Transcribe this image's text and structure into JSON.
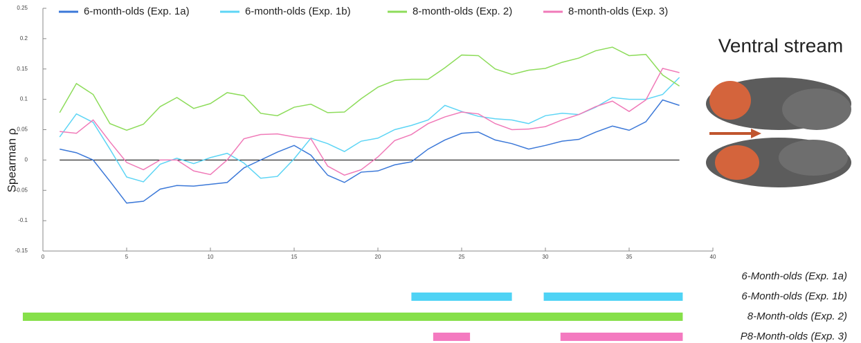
{
  "chart_data": {
    "type": "line",
    "title": "Ventral stream",
    "y_label": "Spearman ρ",
    "x": [
      1,
      2,
      3,
      4,
      5,
      6,
      7,
      8,
      9,
      10,
      11,
      12,
      13,
      14,
      15,
      16,
      17,
      18,
      19,
      20,
      21,
      22,
      23,
      24,
      25,
      26,
      27,
      28,
      29,
      30,
      31,
      32,
      33,
      34,
      35,
      36,
      37,
      38
    ],
    "series": [
      {
        "name": "6-month-olds (Exp. 1a)",
        "color": "#3b78d8",
        "values": [
          0.018,
          0.012,
          0.0,
          -0.035,
          -0.071,
          -0.068,
          -0.048,
          -0.042,
          -0.043,
          -0.04,
          -0.037,
          -0.013,
          0.0,
          0.013,
          0.024,
          0.008,
          -0.025,
          -0.037,
          -0.02,
          -0.018,
          -0.008,
          -0.003,
          0.018,
          0.033,
          0.044,
          0.046,
          0.033,
          0.027,
          0.018,
          0.024,
          0.031,
          0.034,
          0.046,
          0.056,
          0.049,
          0.063,
          0.099,
          0.09
        ]
      },
      {
        "name": "6-month-olds (Exp. 1b)",
        "color": "#5dd5f5",
        "values": [
          0.038,
          0.076,
          0.062,
          0.018,
          -0.028,
          -0.036,
          -0.007,
          0.003,
          -0.006,
          0.004,
          0.011,
          -0.005,
          -0.03,
          -0.027,
          0.002,
          0.036,
          0.027,
          0.014,
          0.031,
          0.036,
          0.05,
          0.057,
          0.066,
          0.09,
          0.08,
          0.072,
          0.068,
          0.066,
          0.06,
          0.073,
          0.077,
          0.075,
          0.087,
          0.103,
          0.1,
          0.1,
          0.108,
          0.136
        ]
      },
      {
        "name": "8-month-olds (Exp. 2)",
        "color": "#8ddc5a",
        "values": [
          0.078,
          0.126,
          0.108,
          0.06,
          0.049,
          0.059,
          0.088,
          0.103,
          0.085,
          0.093,
          0.111,
          0.106,
          0.077,
          0.073,
          0.087,
          0.092,
          0.078,
          0.079,
          0.101,
          0.12,
          0.131,
          0.133,
          0.133,
          0.152,
          0.173,
          0.172,
          0.15,
          0.141,
          0.148,
          0.151,
          0.161,
          0.168,
          0.18,
          0.186,
          0.172,
          0.174,
          0.14,
          0.122
        ]
      },
      {
        "name": "8-month-olds (Exp. 3)",
        "color": "#f07ab8",
        "values": [
          0.047,
          0.044,
          0.066,
          0.03,
          -0.004,
          -0.016,
          0.0,
          0.0,
          -0.018,
          -0.024,
          0.0,
          0.035,
          0.042,
          0.043,
          0.038,
          0.035,
          -0.01,
          -0.025,
          -0.016,
          0.005,
          0.032,
          0.042,
          0.06,
          0.071,
          0.079,
          0.076,
          0.06,
          0.05,
          0.051,
          0.055,
          0.066,
          0.075,
          0.088,
          0.097,
          0.08,
          0.099,
          0.151,
          0.144
        ]
      }
    ],
    "xlim": [
      0,
      40
    ],
    "xticks": [
      0,
      5,
      10,
      15,
      20,
      25,
      30,
      35,
      40
    ],
    "ylim": [
      -0.15,
      0.25
    ],
    "yticks": [
      -0.15,
      -0.1,
      -0.05,
      0,
      0.05,
      0.1,
      0.15,
      0.2,
      0.25
    ],
    "reference_line": 0,
    "significance": [
      {
        "label": "6-Month-olds  (Exp. 1a)",
        "color": "#4fd3f5",
        "segments": []
      },
      {
        "label": "6-Month-olds  (Exp. 1b)",
        "color": "#4fd3f5",
        "segments": [
          [
            22.0,
            28.0
          ],
          [
            29.9,
            38.2
          ]
        ]
      },
      {
        "label": "8-Month-olds  (Exp. 2)",
        "color": "#86e04a",
        "segments": [
          [
            -1.2,
            38.2
          ]
        ]
      },
      {
        "label": "P8-Month-olds  (Exp. 3)",
        "color": "#f47ac0",
        "segments": [
          [
            23.3,
            25.5
          ],
          [
            30.9,
            38.2
          ]
        ]
      }
    ]
  }
}
